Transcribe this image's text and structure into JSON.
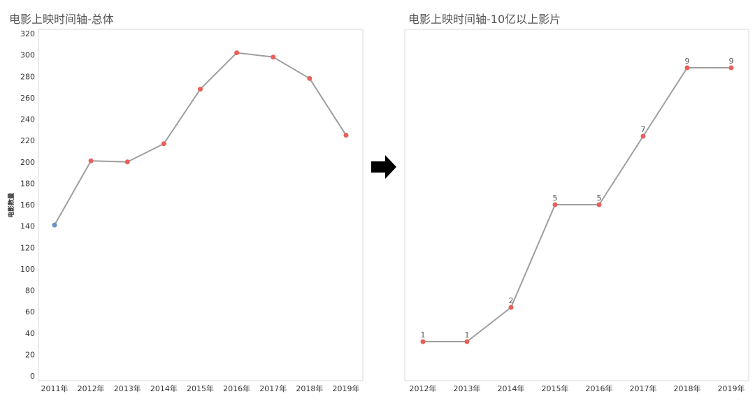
{
  "chart_data": [
    {
      "type": "line",
      "title": "电影上映时间轴-总体",
      "ylabel": "电影数量",
      "xlabel": "",
      "categories": [
        "2011年",
        "2012年",
        "2013年",
        "2014年",
        "2015年",
        "2016年",
        "2017年",
        "2018年",
        "2019年"
      ],
      "values": [
        141,
        201,
        200,
        217,
        268,
        302,
        298,
        278,
        225
      ],
      "ylim": [
        0,
        320
      ],
      "yticks": [
        0,
        20,
        40,
        60,
        80,
        100,
        120,
        140,
        160,
        180,
        200,
        220,
        240,
        260,
        280,
        300,
        320
      ],
      "yticks_visible": true,
      "data_labels": false,
      "grid": false,
      "line_color": "#9e9e9e",
      "point_colors": [
        "#6a93c6",
        "#e8605a",
        "#e8605a",
        "#e8605a",
        "#e8605a",
        "#e8605a",
        "#e8605a",
        "#e8605a",
        "#e8605a"
      ]
    },
    {
      "type": "line",
      "title": "电影上映时间轴-10亿以上影片",
      "ylabel": "",
      "xlabel": "",
      "categories": [
        "2012年",
        "2013年",
        "2014年",
        "2015年",
        "2016年",
        "2017年",
        "2018年",
        "2019年"
      ],
      "values": [
        1,
        1,
        2,
        5,
        5,
        7,
        9,
        9
      ],
      "ylim": [
        0,
        10
      ],
      "yticks": [],
      "yticks_visible": false,
      "data_labels": true,
      "grid": false,
      "line_color": "#9e9e9e",
      "point_colors": [
        "#e8605a",
        "#e8605a",
        "#e8605a",
        "#e8605a",
        "#e8605a",
        "#e8605a",
        "#e8605a",
        "#e8605a"
      ]
    }
  ],
  "arrow_icon": "right-arrow-icon",
  "colors": {
    "frame": "#d8d8d8",
    "arrow": "#000000"
  }
}
